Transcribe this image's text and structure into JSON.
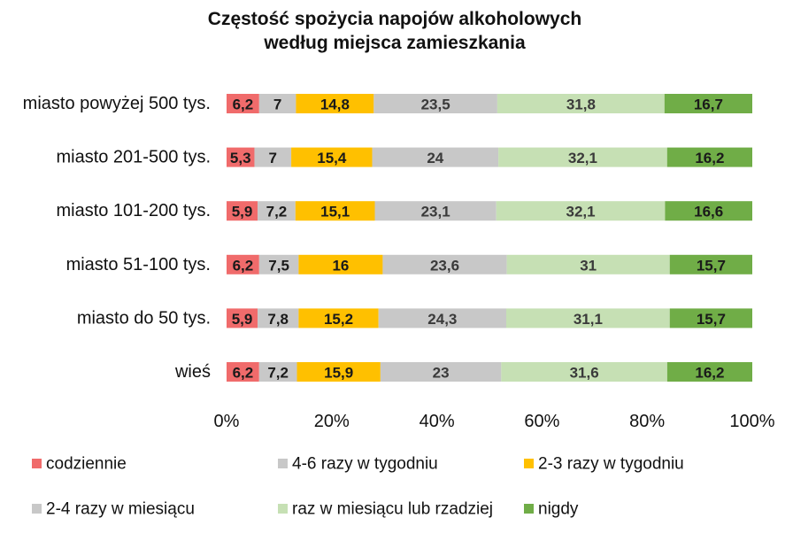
{
  "chart_data": {
    "type": "bar",
    "orientation": "horizontal",
    "stacked": "percent",
    "title": "Częstość spożycia napojów alkoholowych według miejsca zamieszkania",
    "title_lines": [
      "Częstość spożycia napojów alkoholowych",
      "według miejsca zamieszkania"
    ],
    "categories": [
      "miasto powyżej 500 tys.",
      "miasto 201-500 tys.",
      "miasto 101-200 tys.",
      "miasto 51-100 tys.",
      "miasto do 50 tys.",
      "wieś"
    ],
    "series": [
      {
        "name": "codziennie",
        "color": "#F06B6B",
        "label_color": "#1a1a1a",
        "values": [
          6.2,
          5.3,
          5.9,
          6.2,
          5.9,
          6.2
        ],
        "labels": [
          "6,2",
          "5,3",
          "5,9",
          "6,2",
          "5,9",
          "6,2"
        ]
      },
      {
        "name": "4-6 razy w tygodniu",
        "color": "#C8C8C8",
        "label_color": "#1a1a1a",
        "values": [
          7,
          7,
          7.2,
          7.5,
          7.8,
          7.2
        ],
        "labels": [
          "7",
          "7",
          "7,2",
          "7,5",
          "7,8",
          "7,2"
        ]
      },
      {
        "name": "2-3 razy w tygodniu",
        "color": "#FFC000",
        "label_color": "#1a1a1a",
        "values": [
          14.8,
          15.4,
          15.1,
          16,
          15.2,
          15.9
        ],
        "labels": [
          "14,8",
          "15,4",
          "15,1",
          "16",
          "15,2",
          "15,9"
        ]
      },
      {
        "name": "2-4 razy w miesiącu",
        "color": "#C8C8C8",
        "label_color": "#3a3a3a",
        "values": [
          23.5,
          24,
          23.1,
          23.6,
          24.3,
          23
        ],
        "labels": [
          "23,5",
          "24",
          "23,1",
          "23,6",
          "24,3",
          "23"
        ]
      },
      {
        "name": "raz w miesiącu lub rzadziej",
        "color": "#C6E0B4",
        "label_color": "#3a3a3a",
        "values": [
          31.8,
          32.1,
          32.1,
          31,
          31.1,
          31.6
        ],
        "labels": [
          "31,8",
          "32,1",
          "32,1",
          "31",
          "31,1",
          "31,6"
        ]
      },
      {
        "name": "nigdy",
        "color": "#70AD47",
        "label_color": "#1a1a1a",
        "values": [
          16.7,
          16.2,
          16.6,
          15.7,
          15.7,
          16.2
        ],
        "labels": [
          "16,7",
          "16,2",
          "16,6",
          "15,7",
          "15,7",
          "16,2"
        ]
      }
    ],
    "xlim": [
      0,
      100
    ],
    "x_ticks": [
      0,
      20,
      40,
      60,
      80,
      100
    ],
    "x_tick_labels": [
      "0%",
      "20%",
      "40%",
      "60%",
      "80%",
      "100%"
    ],
    "xlabel": "",
    "ylabel": "",
    "grid": false,
    "legend_position": "bottom"
  }
}
